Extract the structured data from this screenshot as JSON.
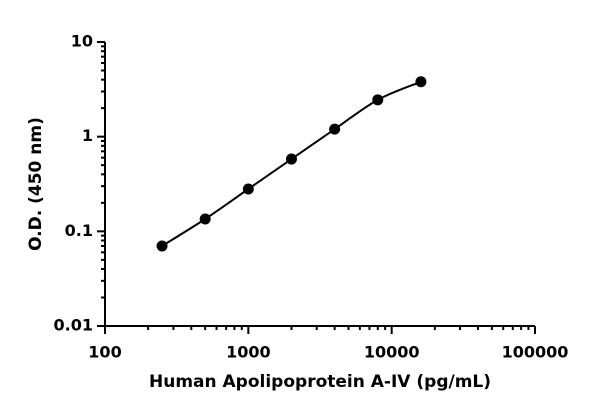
{
  "chart_data": {
    "type": "scatter",
    "x_label": "Human Apolipoprotein A-IV (pg/mL)",
    "y_label": "O.D. (450 nm)",
    "x": [
      250,
      500,
      1000,
      2000,
      4000,
      8000,
      16000
    ],
    "series": [
      {
        "color": "#000000",
        "values": [
          0.07,
          0.135,
          0.28,
          0.58,
          1.2,
          2.45,
          3.8
        ]
      }
    ],
    "xlim": [
      100,
      100000
    ],
    "ylim": [
      0.01,
      10
    ],
    "xticks": [
      100,
      1000,
      10000,
      100000
    ],
    "yticks": [
      0.01,
      0.1,
      1,
      10
    ],
    "xscale": "log",
    "yscale": "log",
    "minor_ticks": true,
    "fit_line": true
  }
}
